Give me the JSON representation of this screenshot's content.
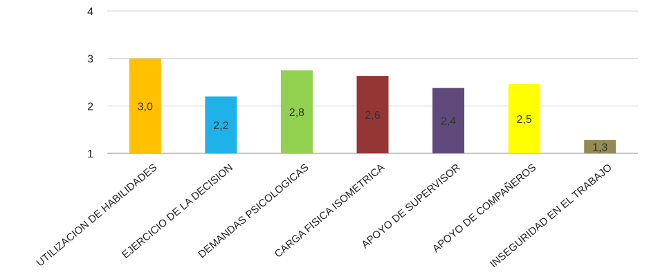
{
  "chart_data": {
    "type": "bar",
    "title": "",
    "xlabel": "",
    "ylabel": "",
    "ylim": [
      1,
      4
    ],
    "yticks": [
      1,
      2,
      3,
      4
    ],
    "grid": true,
    "legend": "none",
    "categories": [
      "UTILIZACION DE HABILIDADES",
      "EJERCICIO DE LA DECISION",
      "DEMANDAS PSICOLOGICAS",
      "CARGA FISICA ISOMETRICA",
      "APOYO DE SUPERVISOR",
      "APOYO DE COMPAÑEROS",
      "INSEGURIDAD EN EL TRABAJO"
    ],
    "values": [
      3.0,
      2.2,
      2.75,
      2.63,
      2.38,
      2.46,
      1.28
    ],
    "data_labels": [
      "3,0",
      "2,2",
      "2,8",
      "2,6",
      "2,4",
      "2,5",
      "1,3"
    ],
    "colors": [
      "#FFC000",
      "#1FB2E8",
      "#92D050",
      "#943634",
      "#604A7B",
      "#FFFF00",
      "#948A54"
    ]
  }
}
